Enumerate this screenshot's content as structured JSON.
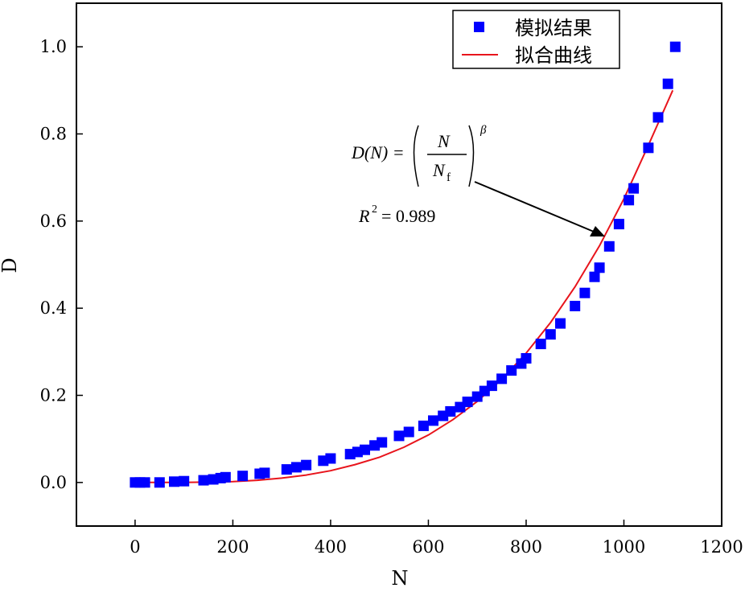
{
  "chart_data": {
    "type": "scatter",
    "xlabel": "N",
    "ylabel": "D",
    "xlim": [
      -120,
      1200
    ],
    "ylim": [
      -0.1,
      1.1
    ],
    "xticks": [
      0,
      200,
      400,
      600,
      800,
      1000,
      1200
    ],
    "yticks": [
      0.0,
      0.2,
      0.4,
      0.6,
      0.8,
      1.0
    ],
    "xtick_labels": [
      "0",
      "200",
      "400",
      "600",
      "800",
      "1000",
      "1200"
    ],
    "ytick_labels": [
      "0.0",
      "0.2",
      "0.4",
      "0.6",
      "0.8",
      "1.0"
    ],
    "legend_position": "top-right",
    "series": [
      {
        "name": "模拟结果",
        "kind": "scatter",
        "marker": "square",
        "color": "#0000FF",
        "x": [
          0,
          10,
          20,
          50,
          80,
          100,
          140,
          160,
          175,
          185,
          220,
          255,
          265,
          310,
          330,
          350,
          385,
          400,
          440,
          455,
          470,
          490,
          505,
          540,
          560,
          590,
          610,
          630,
          645,
          665,
          680,
          700,
          715,
          730,
          750,
          770,
          790,
          800,
          830,
          850,
          870,
          900,
          920,
          940,
          950,
          970,
          990,
          1010,
          1020,
          1050,
          1070,
          1090,
          1105
        ],
        "y": [
          0.0,
          0.0,
          0.0,
          0.0,
          0.002,
          0.003,
          0.005,
          0.007,
          0.01,
          0.012,
          0.015,
          0.02,
          0.022,
          0.03,
          0.035,
          0.04,
          0.05,
          0.055,
          0.065,
          0.07,
          0.075,
          0.085,
          0.092,
          0.107,
          0.116,
          0.13,
          0.142,
          0.153,
          0.163,
          0.173,
          0.185,
          0.197,
          0.21,
          0.222,
          0.238,
          0.257,
          0.273,
          0.285,
          0.318,
          0.34,
          0.365,
          0.405,
          0.435,
          0.472,
          0.493,
          0.542,
          0.593,
          0.648,
          0.675,
          0.768,
          0.838,
          0.915,
          1.0
        ]
      },
      {
        "name": "拟合曲线",
        "kind": "line",
        "color": "#E8141C",
        "x": [
          0,
          50,
          100,
          150,
          200,
          250,
          300,
          350,
          400,
          450,
          500,
          550,
          600,
          650,
          700,
          750,
          800,
          850,
          900,
          950,
          1000,
          1050,
          1100
        ],
        "y": [
          0.0,
          0.0,
          0.0,
          0.001,
          0.002,
          0.005,
          0.01,
          0.017,
          0.027,
          0.041,
          0.058,
          0.081,
          0.109,
          0.144,
          0.186,
          0.237,
          0.297,
          0.367,
          0.449,
          0.543,
          0.651,
          0.774,
          0.9
        ]
      }
    ],
    "annotation": {
      "equation_lhs": "D(N) =",
      "numerator": "N",
      "denominator": "N",
      "denominator_sub": "f",
      "exponent": "β",
      "r2_label": "R",
      "r2_sup": "2",
      "r2_value": "= 0.989"
    }
  }
}
